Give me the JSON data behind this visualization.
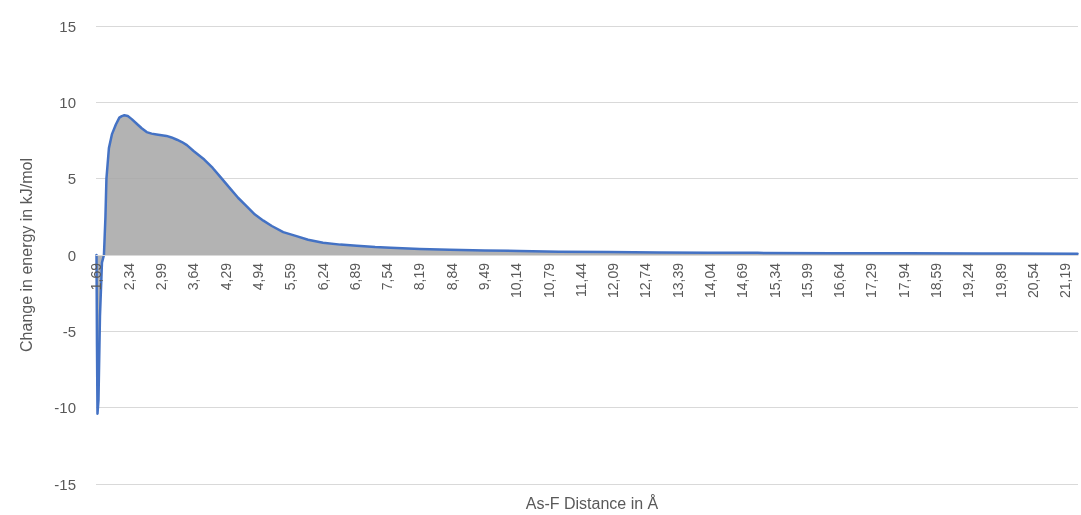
{
  "chart_data": {
    "type": "area",
    "xlabel": "As-F Distance in Å",
    "ylabel": "Change in energy in kJ/mol",
    "x": [
      1.69,
      1.7,
      1.71,
      1.73,
      1.76,
      1.8,
      1.84,
      1.87,
      1.89,
      1.94,
      2.0,
      2.08,
      2.15,
      2.2,
      2.25,
      2.32,
      2.4,
      2.5,
      2.6,
      2.7,
      2.8,
      2.9,
      3.0,
      3.1,
      3.2,
      3.31,
      3.41,
      3.51,
      3.65,
      3.86,
      4.03,
      4.2,
      4.37,
      4.54,
      4.71,
      4.88,
      5.05,
      5.22,
      5.45,
      5.7,
      5.95,
      6.25,
      6.6,
      6.93,
      7.3,
      7.61,
      8.2,
      8.8,
      9.5,
      10.2,
      11.0,
      12.0,
      13.0,
      14.0,
      15.0,
      16.5,
      18.0,
      19.5,
      21.44
    ],
    "series": [
      {
        "color": "#4472c4",
        "values": [
          0,
          -6,
          -10.4,
          -9.5,
          -4,
          -0.5,
          0,
          2.5,
          5,
          7,
          7.9,
          8.55,
          9.0,
          9.1,
          9.15,
          9.1,
          8.9,
          8.6,
          8.3,
          8.05,
          7.95,
          7.9,
          7.85,
          7.8,
          7.7,
          7.55,
          7.4,
          7.2,
          6.8,
          6.25,
          5.7,
          5.05,
          4.4,
          3.75,
          3.2,
          2.65,
          2.25,
          1.9,
          1.5,
          1.25,
          1.0,
          0.8,
          0.68,
          0.6,
          0.52,
          0.48,
          0.4,
          0.35,
          0.3,
          0.26,
          0.22,
          0.19,
          0.17,
          0.15,
          0.14,
          0.12,
          0.11,
          0.1,
          0.09
        ]
      }
    ],
    "xlim": [
      1.68,
      21.45
    ],
    "xticks": [
      {
        "value": 1.69,
        "label": "1,69"
      },
      {
        "value": 2.34,
        "label": "2,34"
      },
      {
        "value": 2.99,
        "label": "2,99"
      },
      {
        "value": 3.64,
        "label": "3,64"
      },
      {
        "value": 4.29,
        "label": "4,29"
      },
      {
        "value": 4.94,
        "label": "4,94"
      },
      {
        "value": 5.59,
        "label": "5,59"
      },
      {
        "value": 6.24,
        "label": "6,24"
      },
      {
        "value": 6.89,
        "label": "6,89"
      },
      {
        "value": 7.54,
        "label": "7,54"
      },
      {
        "value": 8.19,
        "label": "8,19"
      },
      {
        "value": 8.84,
        "label": "8,84"
      },
      {
        "value": 9.49,
        "label": "9,49"
      },
      {
        "value": 10.14,
        "label": "10,14"
      },
      {
        "value": 10.79,
        "label": "10,79"
      },
      {
        "value": 11.44,
        "label": "11,44"
      },
      {
        "value": 12.09,
        "label": "12,09"
      },
      {
        "value": 12.74,
        "label": "12,74"
      },
      {
        "value": 13.39,
        "label": "13,39"
      },
      {
        "value": 14.04,
        "label": "14,04"
      },
      {
        "value": 14.69,
        "label": "14,69"
      },
      {
        "value": 15.34,
        "label": "15,34"
      },
      {
        "value": 15.99,
        "label": "15,99"
      },
      {
        "value": 16.64,
        "label": "16,64"
      },
      {
        "value": 17.29,
        "label": "17,29"
      },
      {
        "value": 17.94,
        "label": "17,94"
      },
      {
        "value": 18.59,
        "label": "18,59"
      },
      {
        "value": 19.24,
        "label": "19,24"
      },
      {
        "value": 19.89,
        "label": "19,89"
      },
      {
        "value": 20.54,
        "label": "20,54"
      },
      {
        "value": 21.19,
        "label": "21,19"
      }
    ],
    "ylim": [
      -15,
      15
    ],
    "yticks": [
      -15,
      -10,
      -5,
      0,
      5,
      10,
      15
    ],
    "grid": "y",
    "marker": "none"
  }
}
